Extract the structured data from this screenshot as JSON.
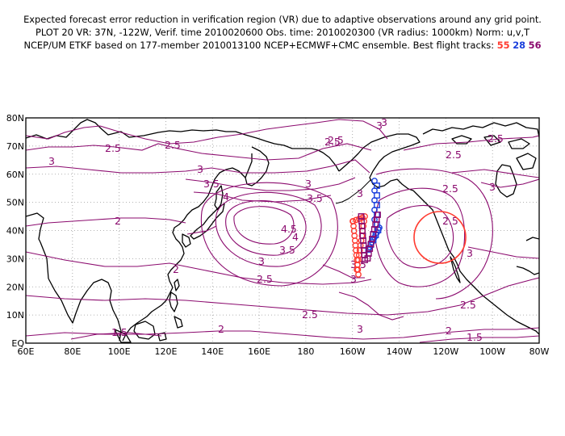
{
  "header": {
    "line1": "Expected forecast error reduction in verification region (VR) due to adaptive observations around any grid point.",
    "line2": "PLOT 20 VR: 37N, -122W, Verif. time 2010020600 Obs. time: 2010020300 (VR radius: 1000km) Norm: u,v,T",
    "line3_prefix": "NCEP/UM ETKF based on 177-member 2010013100 NCEP+ECMWF+CMC ensemble. Best flight tracks: ",
    "track_a": "55",
    "track_b": "28",
    "track_c": "56"
  },
  "colors": {
    "contour": "#8b0a6e",
    "track_a": "#ff3b30",
    "track_b": "#1a3fdc",
    "track_c": "#8b0a6e",
    "vr_circle": "#ff3b30"
  },
  "map": {
    "lon_labels": [
      "60E",
      "80E",
      "100E",
      "120E",
      "140E",
      "160E",
      "180",
      "160W",
      "140W",
      "120W",
      "100W",
      "80W"
    ],
    "lat_labels": [
      "EQ",
      "10N",
      "20N",
      "30N",
      "40N",
      "50N",
      "60N",
      "70N",
      "80N"
    ],
    "contour_labels": [
      "3",
      "2.5",
      "2.5",
      "2.5",
      "3",
      "3",
      "3",
      "3",
      "3.5",
      "3.5",
      "4",
      "4",
      "4.5",
      "3.5",
      "3",
      "2",
      "2",
      "2.5",
      "3",
      "3.5",
      "3",
      "2.5",
      "2.5",
      "1.5",
      "2",
      "2.5",
      "3",
      "2.5",
      "2",
      "1.5",
      "3",
      "2.5",
      "2.5",
      "3",
      "2.5"
    ]
  }
}
